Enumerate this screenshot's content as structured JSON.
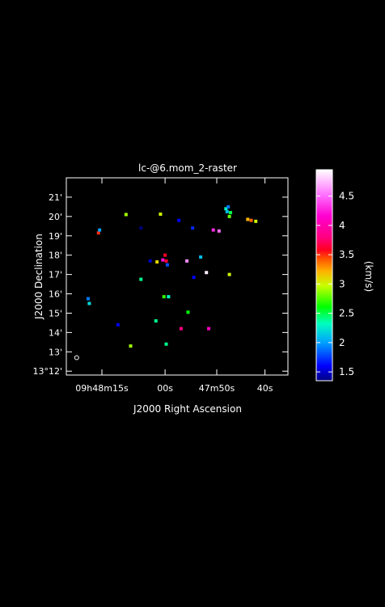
{
  "chart_data": {
    "type": "heatmap",
    "title": "lc-@6.mom_2-raster",
    "xlabel": "J2000 Right Ascension",
    "ylabel": "J2000 Declination",
    "x_ticks": [
      {
        "value": 18.0,
        "label": "09h48m15s"
      },
      {
        "value": 12.5,
        "label": "00s"
      },
      {
        "value": 8.0,
        "label": "47m50s"
      },
      {
        "value": 3.8,
        "label": "40s"
      }
    ],
    "y_ticks": [
      {
        "value": 21,
        "label": "21'"
      },
      {
        "value": 20,
        "label": "20'"
      },
      {
        "value": 19,
        "label": "19'"
      },
      {
        "value": 18,
        "label": "18'"
      },
      {
        "value": 17,
        "label": "17'"
      },
      {
        "value": 16,
        "label": "16'"
      },
      {
        "value": 15,
        "label": "15'"
      },
      {
        "value": 14,
        "label": "14'"
      },
      {
        "value": 13,
        "label": "13'"
      },
      {
        "value": 12,
        "label": "13°12'"
      }
    ],
    "xlim": [
      21.1,
      1.8
    ],
    "ylim": [
      11.8,
      22.0
    ],
    "colorbar": {
      "label": "(km/s)",
      "range": [
        1.35,
        4.95
      ],
      "ticks": [
        1.5,
        2,
        2.5,
        3,
        3.5,
        4,
        4.5
      ],
      "tick_labels": [
        "1.5",
        "2",
        "2.5",
        "3",
        "3.5",
        "4",
        "4.5"
      ]
    },
    "beam": {
      "x": 20.2,
      "y": 12.7
    },
    "pixels": [
      {
        "x": 7.2,
        "y": 20.4,
        "v": 2.3
      },
      {
        "x": 7.0,
        "y": 20.5,
        "v": 1.9
      },
      {
        "x": 6.8,
        "y": 20.2,
        "v": 2.5
      },
      {
        "x": 6.9,
        "y": 20.0,
        "v": 2.8
      },
      {
        "x": 7.1,
        "y": 20.25,
        "v": 2.1
      },
      {
        "x": 5.3,
        "y": 19.85,
        "v": 3.2
      },
      {
        "x": 5.0,
        "y": 19.8,
        "v": 3.4
      },
      {
        "x": 4.6,
        "y": 19.75,
        "v": 3.0
      },
      {
        "x": 15.9,
        "y": 20.1,
        "v": 2.9
      },
      {
        "x": 12.9,
        "y": 20.12,
        "v": 3.0
      },
      {
        "x": 11.3,
        "y": 19.8,
        "v": 1.6
      },
      {
        "x": 10.1,
        "y": 19.4,
        "v": 1.7
      },
      {
        "x": 14.6,
        "y": 19.4,
        "v": 1.3
      },
      {
        "x": 8.3,
        "y": 19.3,
        "v": 4.3
      },
      {
        "x": 7.8,
        "y": 19.25,
        "v": 4.5
      },
      {
        "x": 18.3,
        "y": 19.15,
        "v": 3.5
      },
      {
        "x": 18.2,
        "y": 19.3,
        "v": 2.0
      },
      {
        "x": 13.8,
        "y": 17.7,
        "v": 1.5
      },
      {
        "x": 13.2,
        "y": 17.65,
        "v": 3.1
      },
      {
        "x": 12.5,
        "y": 18.0,
        "v": 3.6
      },
      {
        "x": 12.4,
        "y": 17.7,
        "v": 3.6
      },
      {
        "x": 12.3,
        "y": 17.5,
        "v": 1.8
      },
      {
        "x": 10.6,
        "y": 17.7,
        "v": 4.6
      },
      {
        "x": 9.4,
        "y": 17.9,
        "v": 2.1
      },
      {
        "x": 8.9,
        "y": 17.1,
        "v": 4.9
      },
      {
        "x": 6.9,
        "y": 17.0,
        "v": 3.0
      },
      {
        "x": 12.7,
        "y": 17.75,
        "v": 4.2
      },
      {
        "x": 14.6,
        "y": 16.75,
        "v": 2.4
      },
      {
        "x": 10.0,
        "y": 16.85,
        "v": 1.6
      },
      {
        "x": 12.2,
        "y": 15.85,
        "v": 2.3
      },
      {
        "x": 19.2,
        "y": 15.75,
        "v": 1.9
      },
      {
        "x": 19.1,
        "y": 15.5,
        "v": 2.2
      },
      {
        "x": 10.5,
        "y": 15.05,
        "v": 2.6
      },
      {
        "x": 12.6,
        "y": 15.85,
        "v": 2.7
      },
      {
        "x": 11.1,
        "y": 14.2,
        "v": 3.8
      },
      {
        "x": 8.7,
        "y": 14.2,
        "v": 4.1
      },
      {
        "x": 13.3,
        "y": 14.6,
        "v": 2.4
      },
      {
        "x": 16.6,
        "y": 14.4,
        "v": 1.6
      },
      {
        "x": 15.5,
        "y": 13.3,
        "v": 2.9
      },
      {
        "x": 12.4,
        "y": 13.4,
        "v": 2.4
      }
    ]
  }
}
